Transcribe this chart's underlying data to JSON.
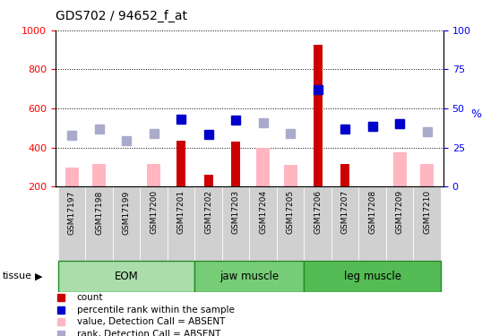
{
  "title": "GDS702 / 94652_f_at",
  "samples": [
    "GSM17197",
    "GSM17198",
    "GSM17199",
    "GSM17200",
    "GSM17201",
    "GSM17202",
    "GSM17203",
    "GSM17204",
    "GSM17205",
    "GSM17206",
    "GSM17207",
    "GSM17208",
    "GSM17209",
    "GSM17210"
  ],
  "group_boundaries": [
    0,
    5,
    9,
    14
  ],
  "group_names": [
    "EOM",
    "jaw muscle",
    "leg muscle"
  ],
  "count_values": [
    null,
    null,
    null,
    null,
    435,
    260,
    430,
    null,
    null,
    925,
    315,
    null,
    null,
    null
  ],
  "percentile_rank": [
    null,
    null,
    null,
    null,
    545,
    465,
    540,
    null,
    null,
    695,
    495,
    510,
    520,
    null
  ],
  "value_absent": [
    295,
    315,
    null,
    315,
    null,
    null,
    null,
    400,
    310,
    null,
    null,
    null,
    375,
    315
  ],
  "rank_absent": [
    460,
    495,
    435,
    470,
    null,
    null,
    null,
    525,
    470,
    null,
    null,
    510,
    520,
    480
  ],
  "ylim_left": [
    200,
    1000
  ],
  "ylim_right": [
    0,
    100
  ],
  "yticks_left": [
    200,
    400,
    600,
    800,
    1000
  ],
  "yticks_right": [
    0,
    25,
    50,
    75,
    100
  ],
  "count_color": "#CC0000",
  "percentile_color": "#0000CC",
  "value_absent_color": "#FFB6C1",
  "rank_absent_color": "#AAAACC",
  "group_color_eom": "#AADDAA",
  "group_color_jaw": "#88DD88",
  "group_color_leg": "#66CC66",
  "tick_bg_color": "#D0D0D0",
  "legend_items": [
    {
      "color": "#CC0000",
      "label": "count"
    },
    {
      "color": "#0000CC",
      "label": "percentile rank within the sample"
    },
    {
      "color": "#FFB6C1",
      "label": "value, Detection Call = ABSENT"
    },
    {
      "color": "#AAAACC",
      "label": "rank, Detection Call = ABSENT"
    }
  ]
}
